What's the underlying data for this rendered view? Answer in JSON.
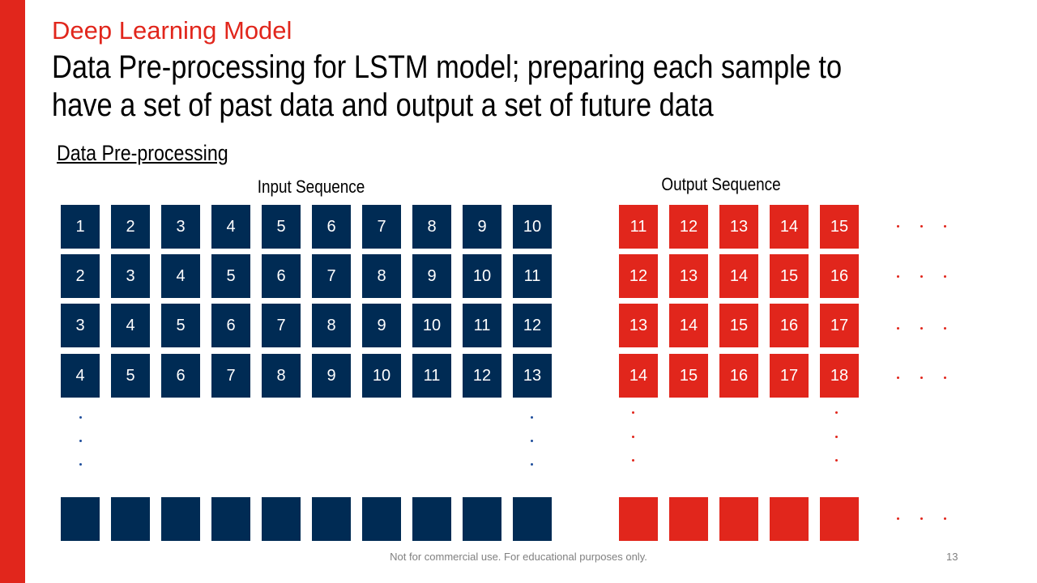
{
  "header": {
    "section_title": "Deep Learning Model",
    "slide_title": "Data Pre-processing for LSTM model; preparing each sample to have a set of past data and output a set of future data"
  },
  "subheading": "Data Pre-processing",
  "labels": {
    "input": "Input Sequence",
    "output": "Output Sequence"
  },
  "input_rows": [
    [
      "1",
      "2",
      "3",
      "4",
      "5",
      "6",
      "7",
      "8",
      "9",
      "10"
    ],
    [
      "2",
      "3",
      "4",
      "5",
      "6",
      "7",
      "8",
      "9",
      "10",
      "11"
    ],
    [
      "3",
      "4",
      "5",
      "6",
      "7",
      "8",
      "9",
      "10",
      "11",
      "12"
    ],
    [
      "4",
      "5",
      "6",
      "7",
      "8",
      "9",
      "10",
      "11",
      "12",
      "13"
    ],
    [
      "",
      "",
      "",
      "",
      "",
      "",
      "",
      "",
      "",
      ""
    ]
  ],
  "output_rows": [
    [
      "11",
      "12",
      "13",
      "14",
      "15"
    ],
    [
      "12",
      "13",
      "14",
      "15",
      "16"
    ],
    [
      "13",
      "14",
      "15",
      "16",
      "17"
    ],
    [
      "14",
      "15",
      "16",
      "17",
      "18"
    ],
    [
      "",
      "",
      "",
      "",
      ""
    ]
  ],
  "colors": {
    "accent_red": "#e1261c",
    "navy": "#002b54"
  },
  "footer": {
    "note": "Not for commercial use. For educational purposes only.",
    "page_number": "13"
  }
}
